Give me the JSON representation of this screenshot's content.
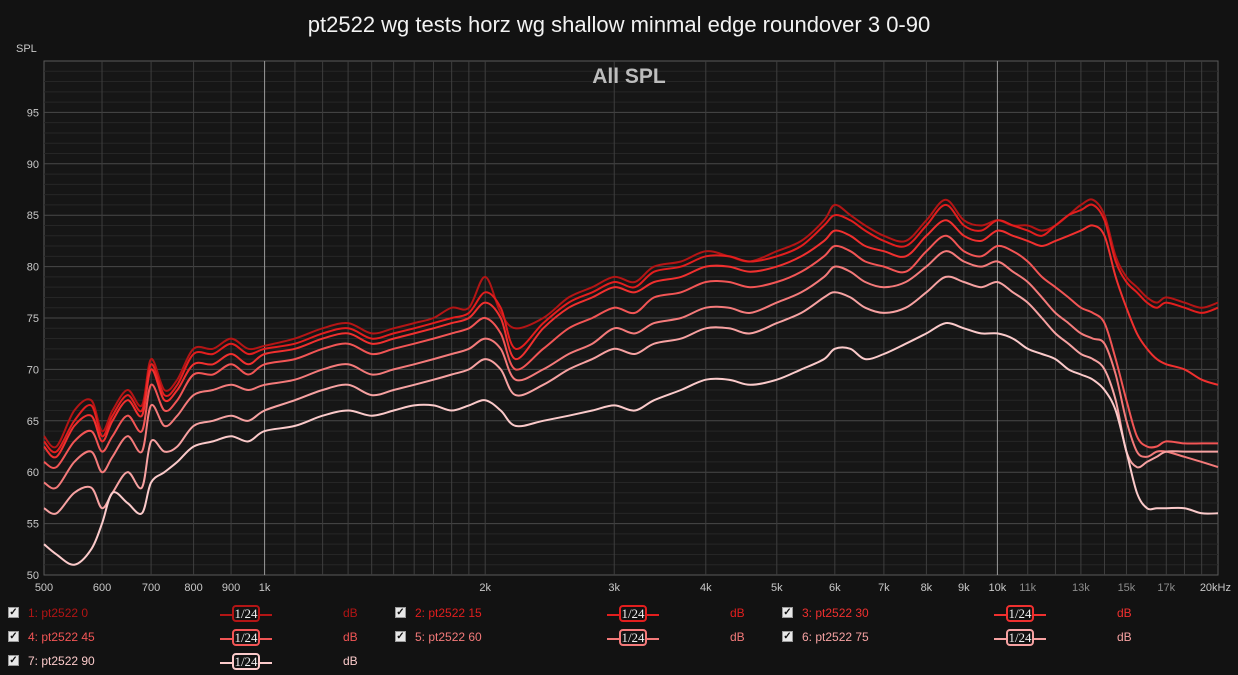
{
  "chart_data": {
    "type": "line",
    "title": "pt2522 wg tests horz wg shallow minmal edge roundover 3 0-90",
    "graph_label": "All SPL",
    "ylabel": "SPL",
    "xlabel": "",
    "x_scale": "log",
    "xlim": [
      500,
      20000
    ],
    "ylim": [
      50,
      100
    ],
    "y_ticks": [
      50,
      55,
      60,
      65,
      70,
      75,
      80,
      85,
      90,
      95
    ],
    "x_ticks": [
      {
        "value": 500,
        "label": "500",
        "minor": false
      },
      {
        "value": 600,
        "label": "600",
        "minor": false
      },
      {
        "value": 700,
        "label": "700",
        "minor": false
      },
      {
        "value": 800,
        "label": "800",
        "minor": false
      },
      {
        "value": 900,
        "label": "900",
        "minor": false
      },
      {
        "value": 1000,
        "label": "1k",
        "minor": false
      },
      {
        "value": 2000,
        "label": "2k",
        "minor": false
      },
      {
        "value": 3000,
        "label": "3k",
        "minor": false
      },
      {
        "value": 4000,
        "label": "4k",
        "minor": false
      },
      {
        "value": 5000,
        "label": "5k",
        "minor": false
      },
      {
        "value": 6000,
        "label": "6k",
        "minor": false
      },
      {
        "value": 7000,
        "label": "7k",
        "minor": false
      },
      {
        "value": 8000,
        "label": "8k",
        "minor": false
      },
      {
        "value": 9000,
        "label": "9k",
        "minor": false
      },
      {
        "value": 10000,
        "label": "10k",
        "minor": false
      },
      {
        "value": 11000,
        "label": "11k",
        "minor": true
      },
      {
        "value": 13000,
        "label": "13k",
        "minor": true
      },
      {
        "value": 15000,
        "label": "15k",
        "minor": true
      },
      {
        "value": 17000,
        "label": "17k",
        "minor": true
      },
      {
        "value": 20000,
        "label": "20kHz",
        "minor": false
      }
    ],
    "grid": true,
    "legend_position": "bottom",
    "series": [
      {
        "name": "1: pt2522 0",
        "color": "#b31515",
        "smoothing": "1/24",
        "unit": "dB",
        "x": [
          500,
          520,
          550,
          580,
          600,
          620,
          650,
          680,
          700,
          730,
          760,
          800,
          850,
          900,
          950,
          1000,
          1100,
          1200,
          1300,
          1400,
          1500,
          1600,
          1700,
          1800,
          1900,
          2000,
          2100,
          2200,
          2400,
          2600,
          2800,
          3000,
          3200,
          3400,
          3700,
          4000,
          4300,
          4600,
          5000,
          5400,
          5800,
          6000,
          6300,
          6600,
          7000,
          7500,
          8000,
          8500,
          9000,
          9500,
          10000,
          10500,
          11000,
          11500,
          12000,
          12500,
          13000,
          13500,
          14000,
          14500,
          15000,
          15500,
          16000,
          16500,
          17000,
          18000,
          19000,
          20000
        ],
        "y": [
          63.5,
          62.5,
          66,
          67,
          64,
          66,
          68,
          66.5,
          71,
          68,
          69,
          72,
          72,
          73,
          72,
          72.3,
          73,
          74,
          74.5,
          73.5,
          74,
          74.5,
          75,
          76,
          76,
          79,
          75.5,
          74,
          75,
          77,
          78,
          79,
          78.5,
          80,
          80.5,
          81.5,
          81,
          80.5,
          81.5,
          82.5,
          84.5,
          86,
          85,
          84,
          83,
          82.5,
          84.5,
          86.5,
          84.5,
          84,
          84.5,
          84,
          84,
          83.5,
          84,
          85,
          86,
          86.5,
          85,
          81,
          79,
          78,
          77,
          76.5,
          77,
          76.5,
          76,
          76.5
        ]
      },
      {
        "name": "2: pt2522 15",
        "color": "#e31e1e",
        "smoothing": "1/24",
        "unit": "dB",
        "x": [
          500,
          520,
          550,
          580,
          600,
          620,
          650,
          680,
          700,
          730,
          760,
          800,
          850,
          900,
          950,
          1000,
          1100,
          1200,
          1300,
          1400,
          1500,
          1600,
          1700,
          1800,
          1900,
          2000,
          2100,
          2200,
          2400,
          2600,
          2800,
          3000,
          3200,
          3400,
          3700,
          4000,
          4300,
          4600,
          5000,
          5400,
          5800,
          6000,
          6300,
          6600,
          7000,
          7500,
          8000,
          8500,
          9000,
          9500,
          10000,
          10500,
          11000,
          11500,
          12000,
          12500,
          13000,
          13500,
          14000,
          14500,
          15000,
          15500,
          16000,
          16500,
          17000,
          18000,
          19000,
          20000
        ],
        "y": [
          63,
          62,
          65,
          66.5,
          63.5,
          65.5,
          67.5,
          66,
          70.5,
          67.5,
          68.5,
          71.5,
          71.5,
          72.5,
          71.5,
          72,
          72.5,
          73.5,
          74,
          73,
          73.5,
          74,
          74.5,
          75,
          75.5,
          77.5,
          76,
          72,
          74.5,
          76.5,
          77.5,
          78.5,
          78,
          79.5,
          80,
          81,
          81,
          80.5,
          81,
          82,
          84,
          85,
          84.5,
          83.5,
          82.5,
          82,
          84,
          86,
          84,
          83.5,
          84.5,
          84,
          83.5,
          83,
          84,
          85,
          85.5,
          86,
          84.5,
          80.5,
          78.5,
          77.5,
          76.5,
          76,
          76.5,
          76,
          75.5,
          76
        ]
      },
      {
        "name": "3: pt2522 30",
        "color": "#f0302f",
        "smoothing": "1/24",
        "unit": "dB",
        "x": [
          500,
          520,
          550,
          580,
          600,
          620,
          650,
          680,
          700,
          730,
          760,
          800,
          850,
          900,
          950,
          1000,
          1100,
          1200,
          1300,
          1400,
          1500,
          1600,
          1700,
          1800,
          1900,
          2000,
          2100,
          2200,
          2400,
          2600,
          2800,
          3000,
          3200,
          3400,
          3700,
          4000,
          4300,
          4600,
          5000,
          5400,
          5800,
          6000,
          6300,
          6600,
          7000,
          7500,
          8000,
          8500,
          9000,
          9500,
          10000,
          10500,
          11000,
          11500,
          12000,
          12500,
          13000,
          13500,
          14000,
          14500,
          15000,
          15500,
          16000,
          16500,
          17000,
          18000,
          19000,
          20000
        ],
        "y": [
          62.5,
          61.5,
          64.5,
          65.5,
          63,
          65,
          67,
          65.5,
          70,
          67,
          68,
          70.5,
          70.5,
          71.5,
          70.5,
          71.5,
          72,
          73,
          73.5,
          72.5,
          73,
          73.5,
          74,
          74.5,
          75,
          76.5,
          75,
          71,
          74,
          76,
          77,
          78,
          77.5,
          78.5,
          79,
          80,
          80,
          79.5,
          80,
          81,
          82.5,
          83.5,
          83,
          82,
          81.5,
          81,
          83,
          84.5,
          83,
          82.5,
          83.5,
          83,
          82.5,
          82,
          82.5,
          83,
          83.5,
          84,
          83,
          79,
          76,
          73.5,
          72,
          71,
          70.5,
          70,
          69,
          68.5
        ]
      },
      {
        "name": "4: pt2522 45",
        "color": "#f25555",
        "smoothing": "1/24",
        "unit": "dB",
        "x": [
          500,
          520,
          550,
          580,
          600,
          620,
          650,
          680,
          700,
          730,
          760,
          800,
          850,
          900,
          950,
          1000,
          1100,
          1200,
          1300,
          1400,
          1500,
          1600,
          1700,
          1800,
          1900,
          2000,
          2100,
          2200,
          2400,
          2600,
          2800,
          3000,
          3200,
          3400,
          3700,
          4000,
          4300,
          4600,
          5000,
          5400,
          5800,
          6000,
          6300,
          6600,
          7000,
          7500,
          8000,
          8500,
          9000,
          9500,
          10000,
          10500,
          11000,
          11500,
          12000,
          12500,
          13000,
          13500,
          14000,
          14500,
          15000,
          15500,
          16000,
          16500,
          17000,
          18000,
          19000,
          20000
        ],
        "y": [
          61,
          60.5,
          63,
          64,
          62,
          63.5,
          65.5,
          64,
          68.5,
          66,
          67,
          69.5,
          69.5,
          70.5,
          69.5,
          70.5,
          71,
          72,
          72.5,
          71.5,
          72,
          72.5,
          73,
          73.5,
          74,
          75,
          73.5,
          70,
          72,
          74,
          75,
          76,
          75.5,
          77,
          77.5,
          78.5,
          78.5,
          78,
          78.5,
          79.5,
          81,
          82,
          81.5,
          80.5,
          80,
          79.5,
          81.5,
          83,
          81.5,
          81,
          82,
          81.5,
          80.5,
          79,
          78,
          77,
          76,
          75.5,
          74.5,
          71,
          67,
          63.5,
          62.5,
          62.5,
          63,
          62.8,
          62.8,
          62.8
        ]
      },
      {
        "name": "5: pt2522 60",
        "color": "#f47a7a",
        "smoothing": "1/24",
        "unit": "dB",
        "x": [
          500,
          520,
          550,
          580,
          600,
          620,
          650,
          680,
          700,
          730,
          760,
          800,
          850,
          900,
          950,
          1000,
          1100,
          1200,
          1300,
          1400,
          1500,
          1600,
          1700,
          1800,
          1900,
          2000,
          2100,
          2200,
          2400,
          2600,
          2800,
          3000,
          3200,
          3400,
          3700,
          4000,
          4300,
          4600,
          5000,
          5400,
          5800,
          6000,
          6300,
          6600,
          7000,
          7500,
          8000,
          8500,
          9000,
          9500,
          10000,
          10500,
          11000,
          11500,
          12000,
          12500,
          13000,
          13500,
          14000,
          14500,
          15000,
          15500,
          16000,
          16500,
          17000,
          18000,
          19000,
          20000
        ],
        "y": [
          59,
          58.5,
          61,
          62,
          60,
          61.5,
          63.5,
          62,
          66.5,
          64.5,
          65.5,
          67.5,
          68,
          68.5,
          68,
          68.5,
          69,
          70,
          70.5,
          69.5,
          70,
          70.5,
          71,
          71.5,
          72,
          73,
          72,
          69,
          70,
          71.5,
          72.5,
          74,
          73.5,
          74.5,
          75,
          76,
          76,
          75.5,
          76.5,
          77.5,
          79,
          80,
          79.5,
          78.5,
          78,
          78.5,
          80,
          81.5,
          80.5,
          80,
          80.5,
          79.5,
          78.5,
          77,
          75.5,
          74.5,
          73.5,
          73,
          72.5,
          69.5,
          65,
          62,
          61.5,
          62,
          62,
          61.5,
          61,
          60.5
        ]
      },
      {
        "name": "6: pt2522 75",
        "color": "#f7a2a2",
        "smoothing": "1/24",
        "unit": "dB",
        "x": [
          500,
          520,
          550,
          580,
          600,
          620,
          650,
          680,
          700,
          730,
          760,
          800,
          850,
          900,
          950,
          1000,
          1100,
          1200,
          1300,
          1400,
          1500,
          1600,
          1700,
          1800,
          1900,
          2000,
          2100,
          2200,
          2400,
          2600,
          2800,
          3000,
          3200,
          3400,
          3700,
          4000,
          4300,
          4600,
          5000,
          5400,
          5800,
          6000,
          6300,
          6600,
          7000,
          7500,
          8000,
          8500,
          9000,
          9500,
          10000,
          10500,
          11000,
          11500,
          12000,
          12500,
          13000,
          13500,
          14000,
          14500,
          15000,
          15500,
          16000,
          16500,
          17000,
          18000,
          19000,
          20000
        ],
        "y": [
          56.5,
          56,
          58,
          58.5,
          56.5,
          58,
          60,
          58.5,
          63,
          62,
          62.5,
          64.5,
          65,
          65.5,
          65,
          66,
          67,
          68,
          68.5,
          67.5,
          68,
          68.5,
          69,
          69.5,
          70,
          71,
          70,
          67.5,
          68.5,
          70,
          71,
          72,
          71.5,
          72.5,
          73,
          74,
          74,
          73.5,
          74.5,
          75.5,
          77,
          77.5,
          77,
          76,
          75.5,
          76,
          77.5,
          79,
          78.5,
          78,
          78.5,
          77.5,
          76.5,
          75,
          73.5,
          72.5,
          71.5,
          71,
          70,
          67,
          62,
          60.5,
          61,
          61.5,
          62,
          62,
          62,
          62
        ]
      },
      {
        "name": "7: pt2522 90",
        "color": "#fbcaca",
        "smoothing": "1/24",
        "unit": "dB",
        "x": [
          500,
          520,
          550,
          580,
          600,
          620,
          650,
          680,
          700,
          730,
          760,
          800,
          850,
          900,
          950,
          1000,
          1100,
          1200,
          1300,
          1400,
          1500,
          1600,
          1700,
          1800,
          1900,
          2000,
          2100,
          2200,
          2400,
          2600,
          2800,
          3000,
          3200,
          3400,
          3700,
          4000,
          4300,
          4600,
          5000,
          5400,
          5800,
          6000,
          6300,
          6600,
          7000,
          7500,
          8000,
          8500,
          9000,
          9500,
          10000,
          10500,
          11000,
          11500,
          12000,
          12500,
          13000,
          13500,
          14000,
          14500,
          15000,
          15500,
          16000,
          16500,
          17000,
          18000,
          19000,
          20000
        ],
        "y": [
          53,
          52,
          51,
          52.5,
          55,
          58,
          57,
          56,
          59,
          60,
          61,
          62.5,
          63,
          63.5,
          63,
          64,
          64.5,
          65.5,
          66,
          65.5,
          66,
          66.5,
          66.5,
          66,
          66.5,
          67,
          66,
          64.5,
          65,
          65.5,
          66,
          66.5,
          66,
          67,
          68,
          69,
          69,
          68.5,
          69,
          70,
          71,
          72,
          72,
          71,
          71.5,
          72.5,
          73.5,
          74.5,
          74,
          73.5,
          73.5,
          73,
          72,
          71.5,
          71,
          70,
          69.5,
          69,
          68,
          66,
          62,
          58,
          56.5,
          56.5,
          56.5,
          56.5,
          56,
          56
        ]
      }
    ]
  },
  "legend": {
    "check_glyph": "✓",
    "smoothing_label": "1⁄24",
    "unit_label": "dB"
  }
}
